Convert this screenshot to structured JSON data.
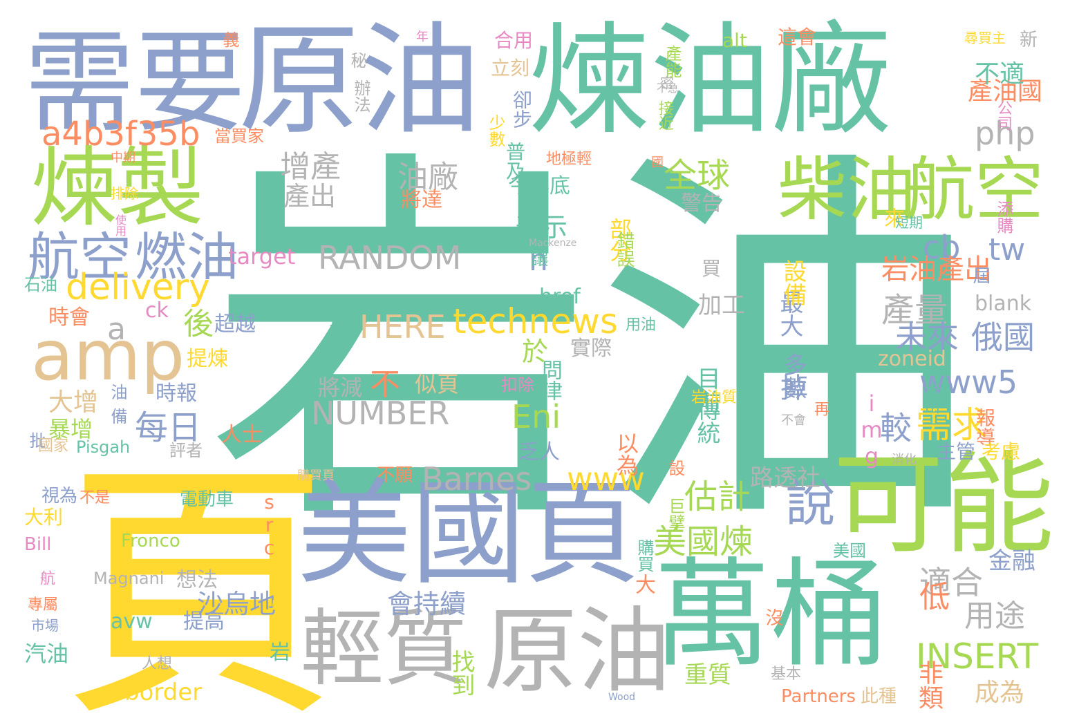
{
  "colors": {
    "teal": "#66c2a5",
    "orange": "#fc8d62",
    "blue": "#8da0cb",
    "pink": "#e78ac3",
    "green": "#a6d854",
    "yellow": "#ffd92f",
    "tan": "#e5c494",
    "gray": "#b3b3b3"
  },
  "words": [
    {
      "text": "岩油",
      "color": "teal"
    },
    {
      "text": "頁",
      "color": "yellow"
    },
    {
      "text": "煉油廠",
      "color": "teal"
    },
    {
      "text": "原油",
      "color": "blue"
    },
    {
      "text": "需要",
      "color": "blue"
    },
    {
      "text": "美國頁",
      "color": "blue"
    },
    {
      "text": "萬桶",
      "color": "teal"
    },
    {
      "text": "可能",
      "color": "green"
    },
    {
      "text": "原油",
      "color": "gray"
    },
    {
      "text": "輕質",
      "color": "gray"
    },
    {
      "text": "煉製",
      "color": "green"
    },
    {
      "text": "amp",
      "color": "tan"
    },
    {
      "text": "柴油",
      "color": "green"
    },
    {
      "text": "航空",
      "color": "green"
    },
    {
      "text": "航空",
      "color": "blue"
    },
    {
      "text": "燃油",
      "color": "blue"
    },
    {
      "text": "a4b3f35b",
      "color": "orange"
    },
    {
      "text": "delivery",
      "color": "yellow"
    },
    {
      "text": "technews",
      "color": "yellow"
    },
    {
      "text": "RANDOM",
      "color": "gray"
    },
    {
      "text": "NUMBER",
      "color": "gray"
    },
    {
      "text": "HERE",
      "color": "tan"
    },
    {
      "text": "INSERT",
      "color": "green"
    },
    {
      "text": "Barnes",
      "color": "gray"
    },
    {
      "text": "www5",
      "color": "blue"
    },
    {
      "text": "www",
      "color": "yellow"
    },
    {
      "text": "php",
      "color": "gray"
    },
    {
      "text": "說",
      "color": "blue"
    },
    {
      "text": "估計",
      "color": "green"
    },
    {
      "text": "美國煉",
      "color": "green"
    },
    {
      "text": "全球",
      "color": "green"
    },
    {
      "text": "增產",
      "color": "gray"
    },
    {
      "text": "油廠",
      "color": "gray"
    },
    {
      "text": "產出",
      "color": "gray"
    },
    {
      "text": "每日",
      "color": "blue"
    },
    {
      "text": "後",
      "color": "green"
    },
    {
      "text": "a",
      "color": "gray"
    },
    {
      "text": "不",
      "color": "orange"
    },
    {
      "text": "於",
      "color": "green"
    },
    {
      "text": "n",
      "color": "blue"
    },
    {
      "text": "cb",
      "color": "blue"
    },
    {
      "text": "tw",
      "color": "blue"
    },
    {
      "text": "表示",
      "color": "teal"
    },
    {
      "text": "產量",
      "color": "gray"
    },
    {
      "text": "未來",
      "color": "blue"
    },
    {
      "text": "俄國",
      "color": "blue"
    },
    {
      "text": "需求",
      "color": "yellow"
    },
    {
      "text": "較",
      "color": "blue"
    },
    {
      "text": "掉",
      "color": "blue"
    },
    {
      "text": "Eni",
      "color": "green"
    },
    {
      "text": "岩油產出",
      "color": "orange"
    },
    {
      "text": "產油國",
      "color": "orange"
    },
    {
      "text": "不適",
      "color": "teal"
    },
    {
      "text": "適合",
      "color": "gray"
    },
    {
      "text": "用途",
      "color": "gray"
    },
    {
      "text": "低",
      "color": "orange"
    },
    {
      "text": "沙烏地",
      "color": "blue"
    },
    {
      "text": "會持續",
      "color": "blue"
    },
    {
      "text": "金融",
      "color": "blue"
    },
    {
      "text": "重質",
      "color": "green"
    },
    {
      "text": "非類",
      "color": "orange"
    },
    {
      "text": "成為",
      "color": "tan"
    },
    {
      "text": "Partners",
      "color": "orange"
    },
    {
      "text": "此種",
      "color": "tan"
    },
    {
      "text": "找到",
      "color": "green"
    },
    {
      "text": "border",
      "color": "yellow"
    },
    {
      "text": "avw",
      "color": "teal"
    },
    {
      "text": "提高",
      "color": "blue"
    },
    {
      "text": "想法",
      "color": "gray"
    },
    {
      "text": "Magnani",
      "color": "gray"
    },
    {
      "text": "Fronco",
      "color": "green"
    },
    {
      "text": "電動車",
      "color": "teal"
    },
    {
      "text": "src",
      "color": "orange"
    },
    {
      "text": "路透社",
      "color": "gray"
    },
    {
      "text": "傳統",
      "color": "teal"
    },
    {
      "text": "目前",
      "color": "teal"
    },
    {
      "text": "多數",
      "color": "blue"
    },
    {
      "text": "加工",
      "color": "gray"
    },
    {
      "text": "最大",
      "color": "blue"
    },
    {
      "text": "設備",
      "color": "yellow"
    },
    {
      "text": "買",
      "color": "gray"
    },
    {
      "text": "zoneid",
      "color": "tan"
    },
    {
      "text": "img",
      "color": "pink"
    },
    {
      "text": "blank",
      "color": "gray"
    },
    {
      "text": "報導",
      "color": "orange"
    },
    {
      "text": "考慮",
      "color": "yellow"
    },
    {
      "text": "主管",
      "color": "blue"
    },
    {
      "text": "target",
      "color": "pink"
    },
    {
      "text": "href",
      "color": "teal"
    },
    {
      "text": "ck",
      "color": "pink"
    },
    {
      "text": "時會",
      "color": "orange"
    },
    {
      "text": "超越",
      "color": "blue"
    },
    {
      "text": "提煉",
      "color": "yellow"
    },
    {
      "text": "時報",
      "color": "blue"
    },
    {
      "text": "大增",
      "color": "tan"
    },
    {
      "text": "暴增",
      "color": "green"
    },
    {
      "text": "人士",
      "color": "orange"
    },
    {
      "text": "Pisgah",
      "color": "teal"
    },
    {
      "text": "似頁",
      "color": "tan"
    },
    {
      "text": "將減",
      "color": "gray"
    },
    {
      "text": "問津",
      "color": "teal"
    },
    {
      "text": "實際",
      "color": "gray"
    },
    {
      "text": "乏人",
      "color": "blue"
    },
    {
      "text": "以為",
      "color": "orange"
    },
    {
      "text": "今年底",
      "color": "teal"
    },
    {
      "text": "將達",
      "color": "orange"
    },
    {
      "text": "部分",
      "color": "yellow"
    },
    {
      "text": "警告",
      "color": "gray"
    },
    {
      "text": "普及",
      "color": "teal"
    },
    {
      "text": "少數",
      "color": "yellow"
    },
    {
      "text": "卻步",
      "color": "blue"
    },
    {
      "text": "立刻",
      "color": "tan"
    },
    {
      "text": "合用",
      "color": "pink"
    },
    {
      "text": "alt",
      "color": "green"
    },
    {
      "text": "這會",
      "color": "orange"
    },
    {
      "text": "接近",
      "color": "green"
    },
    {
      "text": "辦法",
      "color": "gray"
    },
    {
      "text": "當買家",
      "color": "orange"
    },
    {
      "text": "石油",
      "color": "teal"
    },
    {
      "text": "大利",
      "color": "yellow"
    },
    {
      "text": "視為",
      "color": "blue"
    },
    {
      "text": "Bill",
      "color": "pink"
    },
    {
      "text": "汽油",
      "color": "teal"
    },
    {
      "text": "設",
      "color": "orange"
    },
    {
      "text": "大",
      "color": "orange"
    },
    {
      "text": "岩",
      "color": "teal"
    },
    {
      "text": "美國",
      "color": "teal"
    },
    {
      "text": "購買",
      "color": "teal"
    },
    {
      "text": "新",
      "color": "gray"
    },
    {
      "text": "公司",
      "color": "pink"
    },
    {
      "text": "添購",
      "color": "pink"
    },
    {
      "text": "來",
      "color": "yellow"
    },
    {
      "text": "屆",
      "color": "blue"
    },
    {
      "text": "再",
      "color": "orange"
    },
    {
      "text": "巨擘",
      "color": "green"
    },
    {
      "text": "特定",
      "color": "yellow"
    },
    {
      "text": "沒",
      "color": "orange"
    },
    {
      "text": "基本",
      "color": "gray"
    },
    {
      "text": "人想",
      "color": "gray"
    },
    {
      "text": "不願",
      "color": "orange"
    },
    {
      "text": "錯誤",
      "color": "green"
    },
    {
      "text": "讓",
      "color": "teal"
    },
    {
      "text": "油",
      "color": "blue"
    },
    {
      "text": "備",
      "color": "blue"
    },
    {
      "text": "批",
      "color": "blue"
    },
    {
      "text": "評者",
      "color": "gray"
    },
    {
      "text": "扣除",
      "color": "pink"
    },
    {
      "text": "秘",
      "color": "gray"
    },
    {
      "text": "密",
      "color": "gray"
    },
    {
      "text": "義",
      "color": "orange"
    },
    {
      "text": "年",
      "color": "pink"
    },
    {
      "text": "產能",
      "color": "green"
    },
    {
      "text": "不急",
      "color": "gray"
    },
    {
      "text": "排除",
      "color": "yellow"
    },
    {
      "text": "中期",
      "color": "orange"
    },
    {
      "text": "使用",
      "color": "pink"
    },
    {
      "text": "地極輕",
      "color": "orange"
    },
    {
      "text": "國",
      "color": "orange"
    },
    {
      "text": "找出",
      "color": "teal"
    },
    {
      "text": "用油",
      "color": "teal"
    },
    {
      "text": "指出",
      "color": "teal"
    },
    {
      "text": "岩油質",
      "color": "yellow"
    },
    {
      "text": "不會",
      "color": "gray"
    },
    {
      "text": "國家",
      "color": "tan"
    },
    {
      "text": "市場",
      "color": "blue"
    },
    {
      "text": "航",
      "color": "pink"
    },
    {
      "text": "專屬",
      "color": "orange"
    },
    {
      "text": "不是",
      "color": "orange"
    },
    {
      "text": "購買頁",
      "color": "tan"
    },
    {
      "text": "Mackenze",
      "color": "gray"
    },
    {
      "text": "Wood",
      "color": "blue"
    },
    {
      "text": "短期",
      "color": "teal"
    },
    {
      "text": "消化",
      "color": "gray"
    },
    {
      "text": "尋買主",
      "color": "yellow"
    }
  ]
}
